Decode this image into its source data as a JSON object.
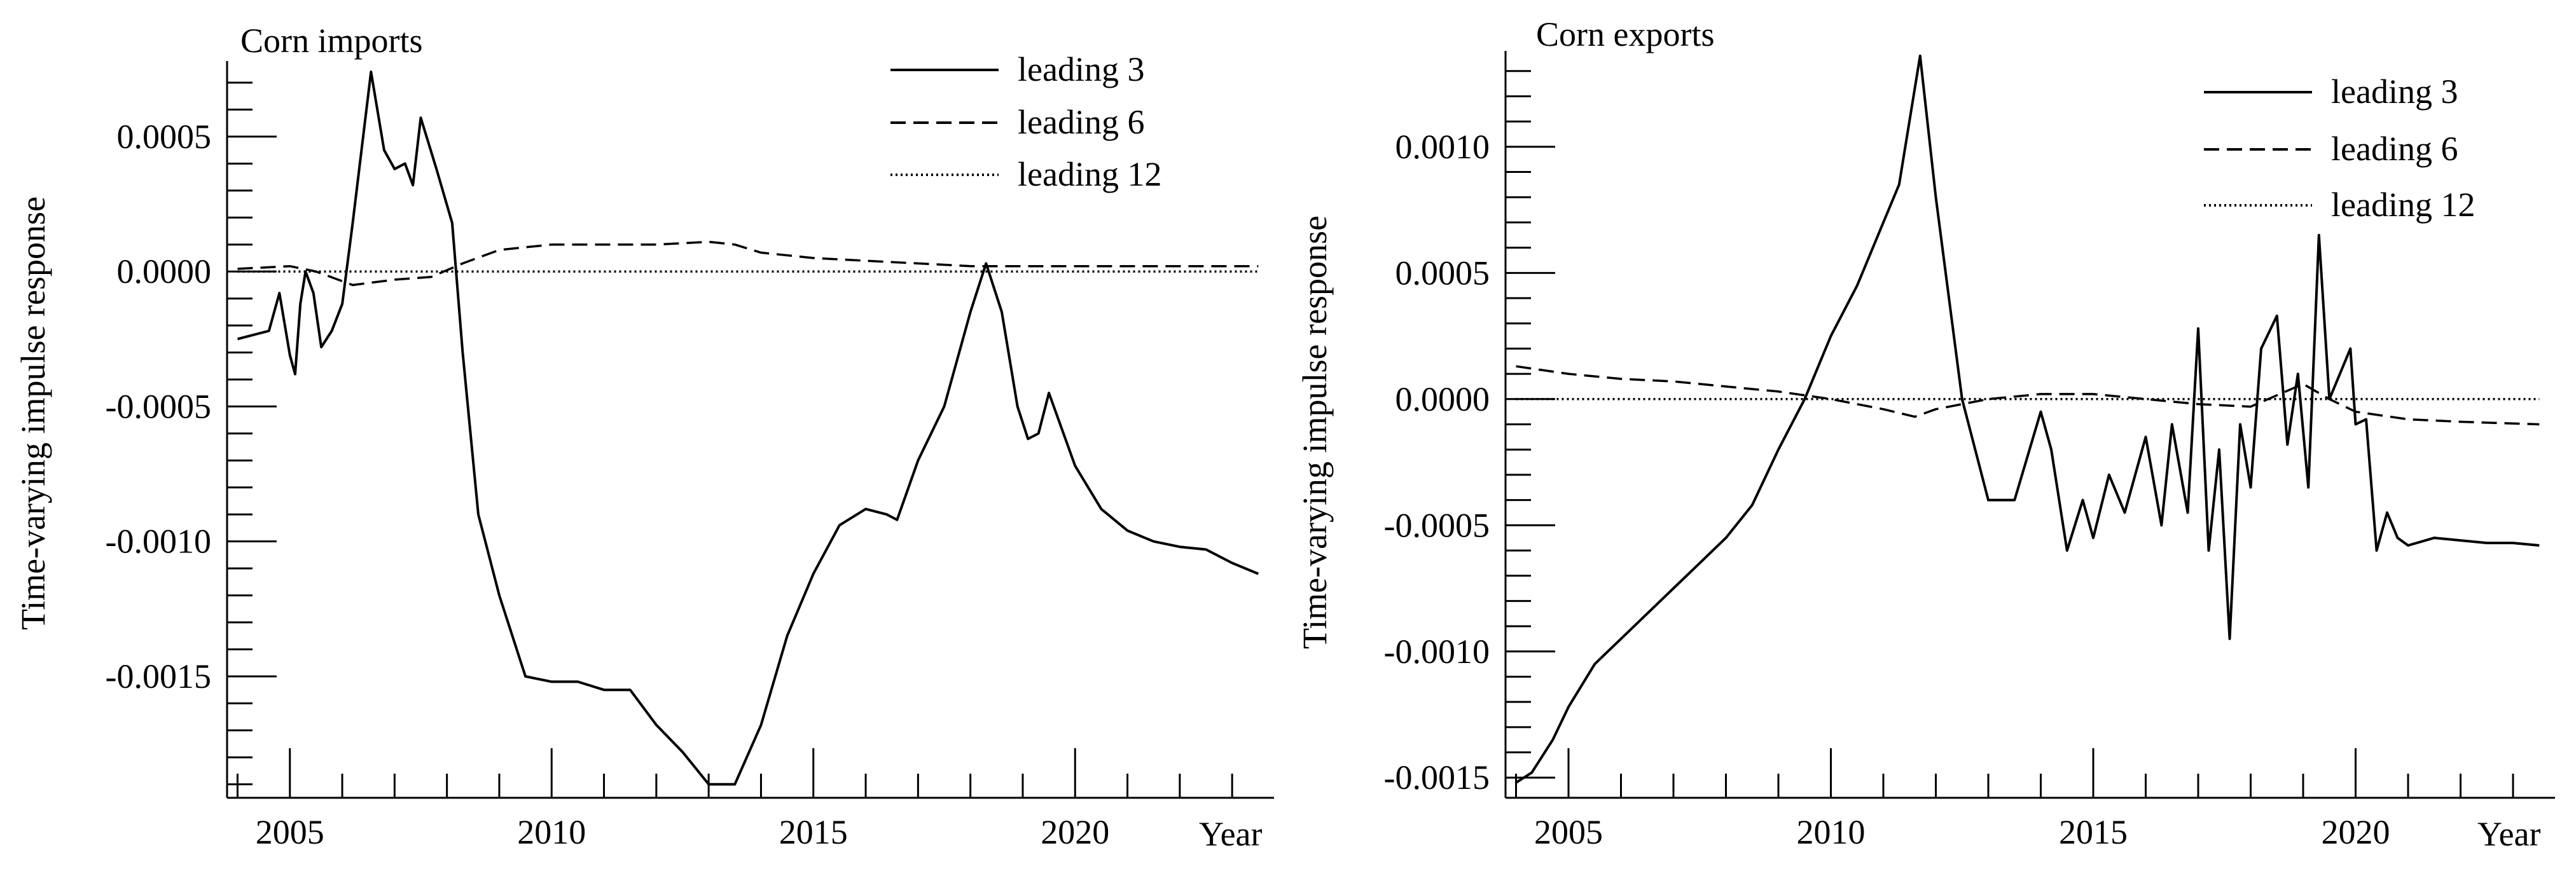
{
  "figure": {
    "background": "#ffffff",
    "line_color": "#000000"
  },
  "chart_data": [
    {
      "type": "line",
      "title": "Corn imports",
      "xlabel": "Year",
      "ylabel": "Time-varying impulse response",
      "xlim": [
        2003.8,
        2023.8
      ],
      "ylim": [
        -0.00195,
        0.00078
      ],
      "xticks": [
        2005,
        2010,
        2015,
        2020
      ],
      "xtick_labels": [
        "2005",
        "2010",
        "2015",
        "2020"
      ],
      "yticks": [
        0.0005,
        0.0,
        -0.0005,
        -0.001,
        -0.0015
      ],
      "ytick_labels": [
        "0.0005",
        "0.0000",
        "-0.0005",
        "-0.0010",
        "-0.0015"
      ],
      "grid": false,
      "legend_position": "top-right",
      "series": [
        {
          "name": "leading 3",
          "style": "solid",
          "points": [
            [
              2004.0,
              -0.00025
            ],
            [
              2004.6,
              -0.00022
            ],
            [
              2004.8,
              -8e-05
            ],
            [
              2005.0,
              -0.00031
            ],
            [
              2005.1,
              -0.00038
            ],
            [
              2005.2,
              -0.00012
            ],
            [
              2005.3,
              0.0
            ],
            [
              2005.45,
              -8e-05
            ],
            [
              2005.6,
              -0.00028
            ],
            [
              2005.8,
              -0.00022
            ],
            [
              2006.0,
              -0.00012
            ],
            [
              2006.2,
              0.00018
            ],
            [
              2006.55,
              0.00074
            ],
            [
              2006.8,
              0.00045
            ],
            [
              2007.0,
              0.00038
            ],
            [
              2007.2,
              0.0004
            ],
            [
              2007.35,
              0.00032
            ],
            [
              2007.5,
              0.00057
            ],
            [
              2007.8,
              0.00038
            ],
            [
              2008.1,
              0.00018
            ],
            [
              2008.3,
              -0.0003
            ],
            [
              2008.6,
              -0.0009
            ],
            [
              2009.0,
              -0.0012
            ],
            [
              2009.5,
              -0.0015
            ],
            [
              2010.0,
              -0.00152
            ],
            [
              2010.5,
              -0.00152
            ],
            [
              2011.0,
              -0.00155
            ],
            [
              2011.5,
              -0.00155
            ],
            [
              2012.0,
              -0.00168
            ],
            [
              2012.5,
              -0.00178
            ],
            [
              2013.0,
              -0.0019
            ],
            [
              2013.5,
              -0.0019
            ],
            [
              2014.0,
              -0.00168
            ],
            [
              2014.5,
              -0.00135
            ],
            [
              2015.0,
              -0.00112
            ],
            [
              2015.5,
              -0.00094
            ],
            [
              2016.0,
              -0.00088
            ],
            [
              2016.4,
              -0.0009
            ],
            [
              2016.6,
              -0.00092
            ],
            [
              2017.0,
              -0.0007
            ],
            [
              2017.5,
              -0.0005
            ],
            [
              2018.0,
              -0.00015
            ],
            [
              2018.3,
              3e-05
            ],
            [
              2018.6,
              -0.00015
            ],
            [
              2018.9,
              -0.0005
            ],
            [
              2019.1,
              -0.00062
            ],
            [
              2019.3,
              -0.0006
            ],
            [
              2019.5,
              -0.00045
            ],
            [
              2020.0,
              -0.00072
            ],
            [
              2020.5,
              -0.00088
            ],
            [
              2021.0,
              -0.00096
            ],
            [
              2021.5,
              -0.001
            ],
            [
              2022.0,
              -0.00102
            ],
            [
              2022.5,
              -0.00103
            ],
            [
              2023.0,
              -0.00108
            ],
            [
              2023.5,
              -0.00112
            ]
          ]
        },
        {
          "name": "leading 6",
          "style": "dashed",
          "points": [
            [
              2004.0,
              1e-05
            ],
            [
              2005.0,
              2e-05
            ],
            [
              2005.5,
              0.0
            ],
            [
              2006.2,
              -5e-05
            ],
            [
              2007.0,
              -3e-05
            ],
            [
              2007.7,
              -2e-05
            ],
            [
              2008.3,
              3e-05
            ],
            [
              2009.0,
              8e-05
            ],
            [
              2010.0,
              0.0001
            ],
            [
              2011.0,
              0.0001
            ],
            [
              2012.0,
              0.0001
            ],
            [
              2013.0,
              0.00011
            ],
            [
              2013.5,
              0.0001
            ],
            [
              2014.0,
              7e-05
            ],
            [
              2015.0,
              5e-05
            ],
            [
              2016.0,
              4e-05
            ],
            [
              2017.0,
              3e-05
            ],
            [
              2018.0,
              2e-05
            ],
            [
              2019.0,
              2e-05
            ],
            [
              2020.0,
              2e-05
            ],
            [
              2021.0,
              2e-05
            ],
            [
              2022.0,
              2e-05
            ],
            [
              2023.5,
              2e-05
            ]
          ]
        },
        {
          "name": "leading 12",
          "style": "dotted",
          "points": [
            [
              2004.0,
              0.0
            ],
            [
              2023.5,
              0.0
            ]
          ]
        }
      ]
    },
    {
      "type": "line",
      "title": "Corn exports",
      "xlabel": "Year",
      "ylabel": "Time-varying impulse response",
      "xlim": [
        2003.8,
        2023.8
      ],
      "ylim": [
        -0.00158,
        0.00138
      ],
      "xticks": [
        2005,
        2010,
        2015,
        2020
      ],
      "xtick_labels": [
        "2005",
        "2010",
        "2015",
        "2020"
      ],
      "yticks": [
        0.001,
        0.0005,
        0.0,
        -0.0005,
        -0.001,
        -0.0015
      ],
      "ytick_labels": [
        "0.0010",
        "0.0005",
        "0.0000",
        "-0.0005",
        "-0.0010",
        "-0.0015"
      ],
      "grid": false,
      "legend_position": "top-right",
      "series": [
        {
          "name": "leading 3",
          "style": "solid",
          "points": [
            [
              2004.0,
              -0.00152
            ],
            [
              2004.3,
              -0.00148
            ],
            [
              2004.7,
              -0.00135
            ],
            [
              2005.0,
              -0.00122
            ],
            [
              2005.5,
              -0.00105
            ],
            [
              2006.0,
              -0.00095
            ],
            [
              2006.5,
              -0.00085
            ],
            [
              2007.0,
              -0.00075
            ],
            [
              2007.5,
              -0.00065
            ],
            [
              2008.0,
              -0.00055
            ],
            [
              2008.5,
              -0.00042
            ],
            [
              2009.0,
              -0.0002
            ],
            [
              2009.5,
              0.0
            ],
            [
              2010.0,
              0.00025
            ],
            [
              2010.5,
              0.00045
            ],
            [
              2011.0,
              0.0007
            ],
            [
              2011.3,
              0.00085
            ],
            [
              2011.7,
              0.00136
            ],
            [
              2012.0,
              0.0008
            ],
            [
              2012.5,
              0.0
            ],
            [
              2013.0,
              -0.0004
            ],
            [
              2013.5,
              -0.0004
            ],
            [
              2014.0,
              -5e-05
            ],
            [
              2014.2,
              -0.0002
            ],
            [
              2014.5,
              -0.0006
            ],
            [
              2014.8,
              -0.0004
            ],
            [
              2015.0,
              -0.00055
            ],
            [
              2015.3,
              -0.0003
            ],
            [
              2015.6,
              -0.00045
            ],
            [
              2016.0,
              -0.00015
            ],
            [
              2016.3,
              -0.0005
            ],
            [
              2016.5,
              -0.0001
            ],
            [
              2016.8,
              -0.00045
            ],
            [
              2017.0,
              0.00028
            ],
            [
              2017.2,
              -0.0006
            ],
            [
              2017.4,
              -0.0002
            ],
            [
              2017.6,
              -0.00095
            ],
            [
              2017.8,
              -0.0001
            ],
            [
              2018.0,
              -0.00035
            ],
            [
              2018.2,
              0.0002
            ],
            [
              2018.5,
              0.00033
            ],
            [
              2018.7,
              -0.00018
            ],
            [
              2018.9,
              0.0001
            ],
            [
              2019.1,
              -0.00035
            ],
            [
              2019.3,
              0.00065
            ],
            [
              2019.5,
              0.0
            ],
            [
              2019.7,
              0.0001
            ],
            [
              2019.9,
              0.0002
            ],
            [
              2020.0,
              -0.0001
            ],
            [
              2020.2,
              -8e-05
            ],
            [
              2020.4,
              -0.0006
            ],
            [
              2020.6,
              -0.00045
            ],
            [
              2020.8,
              -0.00055
            ],
            [
              2021.0,
              -0.00058
            ],
            [
              2021.5,
              -0.00055
            ],
            [
              2022.0,
              -0.00056
            ],
            [
              2022.5,
              -0.00057
            ],
            [
              2023.0,
              -0.00057
            ],
            [
              2023.5,
              -0.00058
            ]
          ]
        },
        {
          "name": "leading 6",
          "style": "dashed",
          "points": [
            [
              2004.0,
              0.00013
            ],
            [
              2005.0,
              0.0001
            ],
            [
              2006.0,
              8e-05
            ],
            [
              2007.0,
              7e-05
            ],
            [
              2008.0,
              5e-05
            ],
            [
              2009.0,
              3e-05
            ],
            [
              2010.0,
              0.0
            ],
            [
              2011.0,
              -4e-05
            ],
            [
              2011.6,
              -7e-05
            ],
            [
              2012.0,
              -4e-05
            ],
            [
              2013.0,
              0.0
            ],
            [
              2014.0,
              2e-05
            ],
            [
              2015.0,
              2e-05
            ],
            [
              2016.0,
              0.0
            ],
            [
              2017.0,
              -2e-05
            ],
            [
              2018.0,
              -3e-05
            ],
            [
              2019.0,
              6e-05
            ],
            [
              2019.5,
              0.0
            ],
            [
              2020.0,
              -5e-05
            ],
            [
              2021.0,
              -8e-05
            ],
            [
              2022.0,
              -9e-05
            ],
            [
              2023.5,
              -0.0001
            ]
          ]
        },
        {
          "name": "leading 12",
          "style": "dotted",
          "points": [
            [
              2004.0,
              0.0
            ],
            [
              2023.5,
              0.0
            ]
          ]
        }
      ]
    }
  ]
}
